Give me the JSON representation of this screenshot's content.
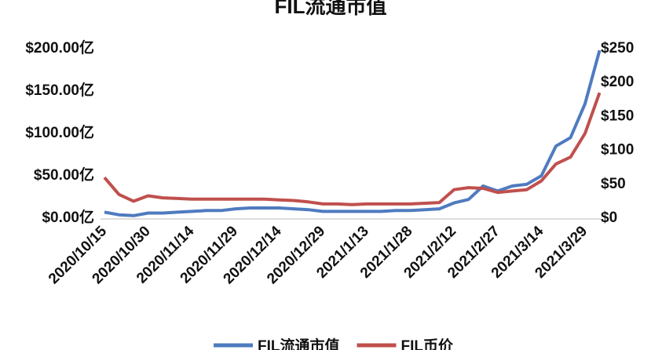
{
  "chart_data": {
    "type": "line",
    "title": "FIL流通市值",
    "categories": [
      "2020/10/15",
      null,
      null,
      "2020/10/30",
      null,
      null,
      "2020/11/14",
      null,
      null,
      "2020/11/29",
      null,
      null,
      "2020/12/14",
      null,
      null,
      "2020/12/29",
      null,
      null,
      "2021/1/13",
      null,
      null,
      "2021/1/28",
      null,
      null,
      "2021/2/12",
      null,
      null,
      "2021/2/27",
      null,
      null,
      "2021/3/14",
      null,
      null,
      "2021/3/29",
      null
    ],
    "series": [
      {
        "name": "FIL流通市值",
        "color": "#4f7bbf",
        "axis": "y",
        "values": [
          7,
          4,
          3,
          6,
          6,
          7,
          8,
          9,
          9,
          11,
          12,
          12,
          12,
          11,
          10,
          8,
          8,
          8,
          8,
          8,
          9,
          9,
          10,
          11,
          18,
          22,
          38,
          32,
          38,
          40,
          50,
          85,
          95,
          135,
          198
        ]
      },
      {
        "name": "FIL币价",
        "color": "#c0504d",
        "axis": "y2",
        "values": [
          60,
          35,
          25,
          33,
          30,
          29,
          28,
          28,
          28,
          28,
          28,
          28,
          27,
          26,
          24,
          21,
          21,
          20,
          21,
          21,
          21,
          21,
          22,
          23,
          42,
          45,
          44,
          38,
          40,
          42,
          55,
          80,
          90,
          125,
          185
        ]
      }
    ],
    "ylim": [
      0,
      200
    ],
    "yticks": [
      {
        "value": 0,
        "label": "$0.00亿"
      },
      {
        "value": 50,
        "label": "$50.00亿"
      },
      {
        "value": 100,
        "label": "$100.00亿"
      },
      {
        "value": 150,
        "label": "$150.00亿"
      },
      {
        "value": 200,
        "label": "$200.00亿"
      }
    ],
    "y2lim": [
      0,
      250
    ],
    "y2ticks": [
      {
        "value": 0,
        "label": "$0"
      },
      {
        "value": 50,
        "label": "$50"
      },
      {
        "value": 100,
        "label": "$100"
      },
      {
        "value": 150,
        "label": "$150"
      },
      {
        "value": 200,
        "label": "$200"
      },
      {
        "value": 250,
        "label": "$250"
      }
    ]
  }
}
